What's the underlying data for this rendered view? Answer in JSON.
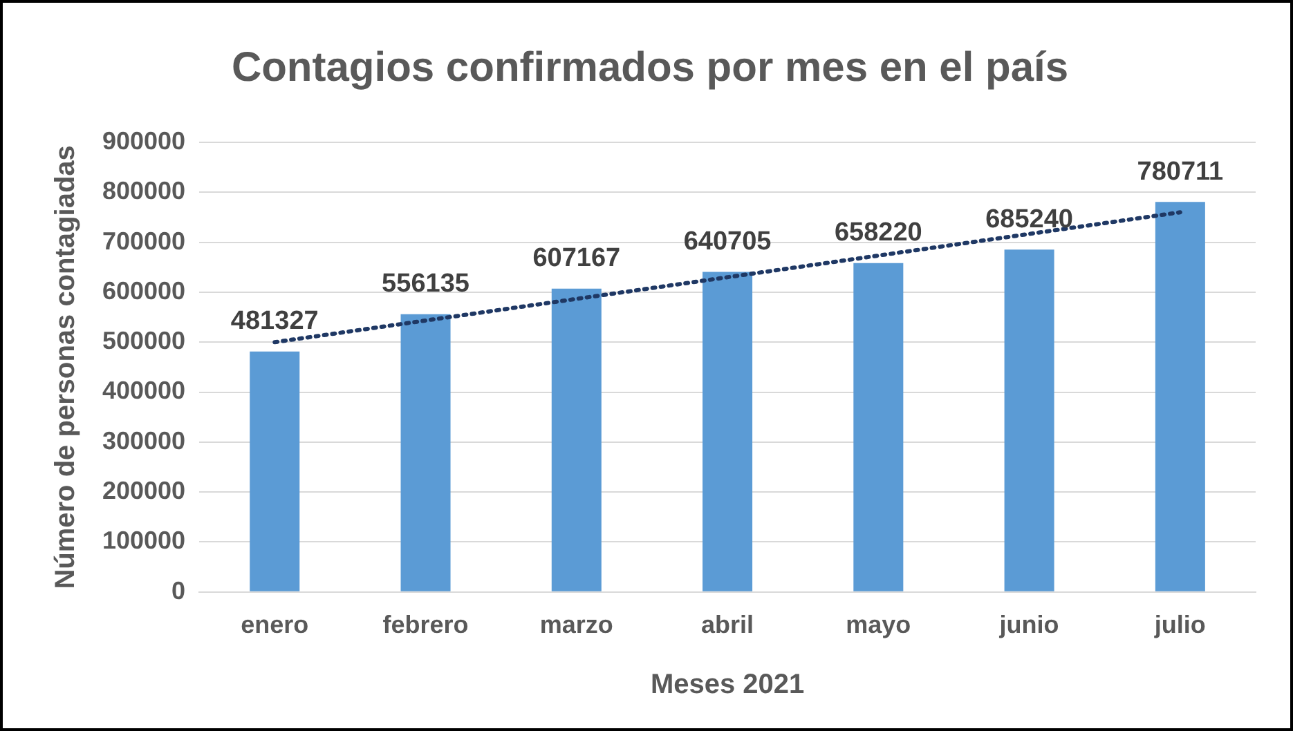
{
  "chart_data": {
    "type": "bar",
    "title": "Contagios confirmados por mes en el país",
    "xlabel": "Meses 2021",
    "ylabel": "Número de personas contagiadas",
    "categories": [
      "enero",
      "febrero",
      "marzo",
      "abril",
      "mayo",
      "junio",
      "julio"
    ],
    "series": [
      {
        "color": "#5b9bd5",
        "values": [
          481327,
          556135,
          607167,
          640705,
          658220,
          685240,
          780711
        ],
        "value_labels": [
          "481327",
          "556135",
          "607167",
          "640705",
          "658220",
          "685240",
          "780711"
        ]
      },
      {
        "type": "line",
        "color": "#1f3864",
        "x": [
          "enero",
          "julio"
        ],
        "values": [
          500000,
          760000
        ],
        "line_style": "dotted",
        "marker": "none"
      }
    ],
    "ylim": [
      0,
      900000
    ],
    "yticks": [
      0,
      100000,
      200000,
      300000,
      400000,
      500000,
      600000,
      700000,
      800000,
      900000
    ],
    "grid": "y",
    "legend": false
  }
}
